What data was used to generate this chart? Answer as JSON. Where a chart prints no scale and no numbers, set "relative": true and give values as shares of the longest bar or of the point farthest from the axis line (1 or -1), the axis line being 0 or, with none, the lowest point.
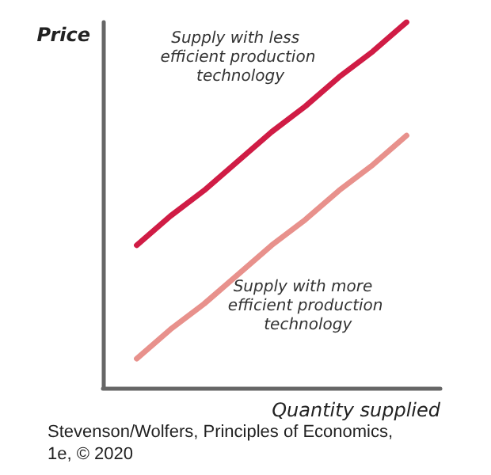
{
  "chart_data": {
    "type": "line",
    "relative": true,
    "xlabel": "Quantity supplied",
    "ylabel": "Price",
    "categories": [
      null,
      null,
      null,
      null,
      null,
      null,
      null,
      null,
      null,
      null,
      null
    ],
    "series": [
      {
        "name": "Supply with less efficient production technology",
        "color": "#d01c45",
        "values": [
          null,
          0.39,
          0.47,
          0.54,
          0.62,
          0.7,
          0.77,
          0.85,
          0.92,
          1.0,
          null
        ]
      },
      {
        "name": "Supply with more efficient production technology",
        "color": "#e8918c",
        "values": [
          null,
          0.08,
          0.16,
          0.23,
          0.31,
          0.39,
          0.46,
          0.54,
          0.61,
          0.69,
          null
        ]
      }
    ],
    "annotations": [
      "Stevenson/Wolfers, Principles of Economics, 1e, © 2020"
    ],
    "marker": "none",
    "line_style": "solid",
    "grid": false,
    "legend": false
  }
}
